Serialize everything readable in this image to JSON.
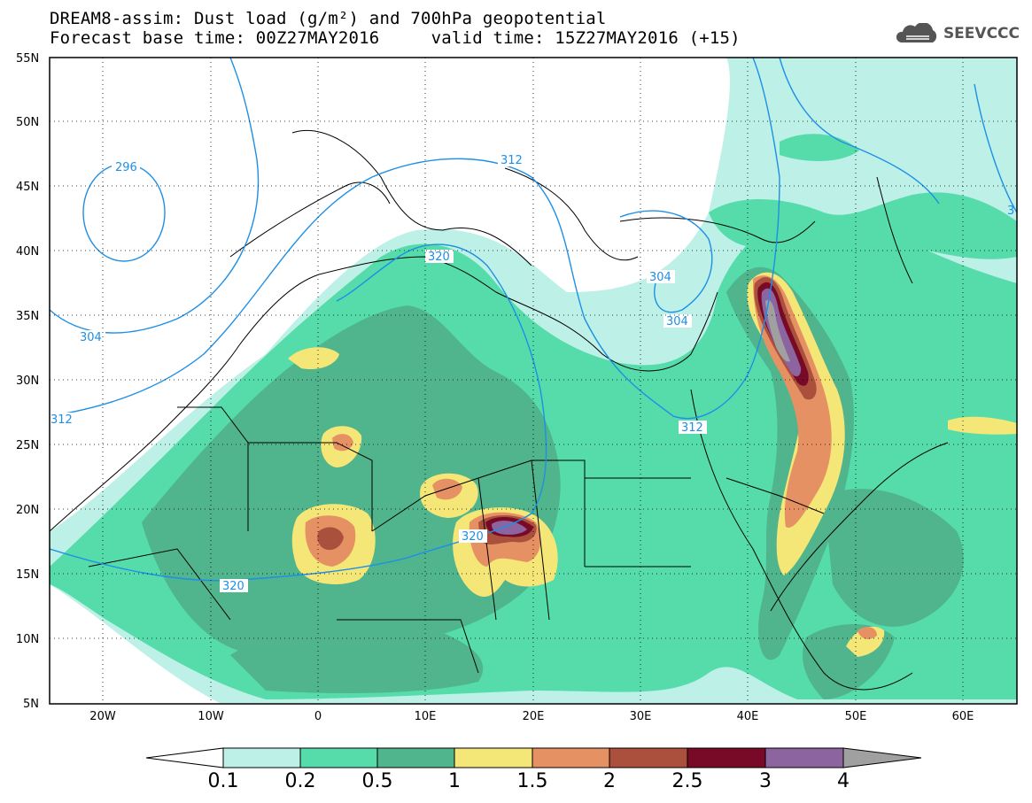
{
  "title": {
    "line1": "DREAM8-assim: Dust load (g/m²) and 700hPa geopotential",
    "line2": "Forecast base time: 00Z27MAY2016     valid time: 15Z27MAY2016 (+15)"
  },
  "logo": {
    "text": "SEEVCCC",
    "icon": "cloud-icon"
  },
  "axes": {
    "lat_labels": [
      "55N",
      "50N",
      "45N",
      "40N",
      "35N",
      "30N",
      "25N",
      "20N",
      "15N",
      "10N",
      "5N"
    ],
    "lon_labels": [
      "20W",
      "10W",
      "0",
      "10E",
      "20E",
      "30E",
      "40E",
      "50E",
      "60E"
    ]
  },
  "contours": {
    "color": "#1e8fe6",
    "labels": [
      "296",
      "312",
      "304",
      "304",
      "304",
      "312",
      "320",
      "320",
      "320",
      "312",
      "3"
    ]
  },
  "colorbar": {
    "ticks": [
      "0.1",
      "0.2",
      "0.5",
      "1",
      "1.5",
      "2",
      "2.5",
      "3",
      "4"
    ],
    "colors": [
      "#ffffff",
      "#bdf0e6",
      "#55dcaa",
      "#50b48c",
      "#f5e678",
      "#e69164",
      "#aa503c",
      "#780a28",
      "#8c64a0",
      "#a0a0a0"
    ]
  },
  "dust_colors": {
    "c1": "#bdf0e6",
    "c2": "#55dcaa",
    "c3": "#50b48c",
    "c4": "#f5e678",
    "c5": "#e69164",
    "c6": "#aa503c",
    "c7": "#780a28",
    "c8": "#8c64a0",
    "c9": "#a0a0a0"
  }
}
